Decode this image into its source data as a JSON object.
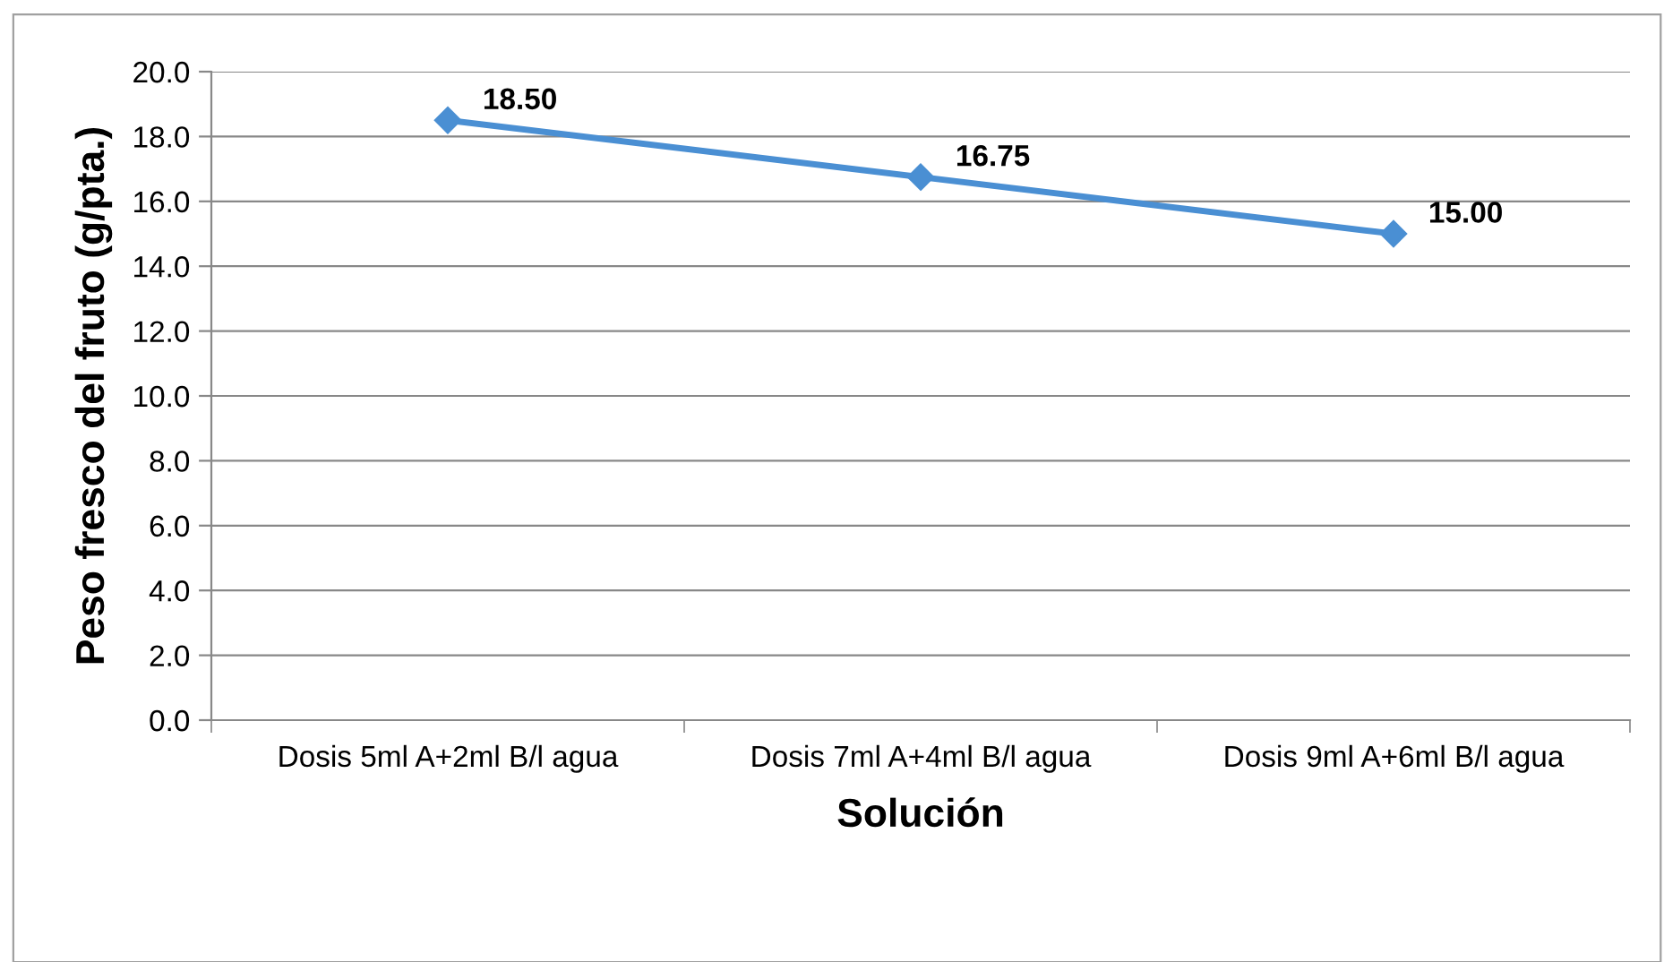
{
  "chart_data": {
    "type": "line",
    "xlabel": "Solución",
    "ylabel": "Peso fresco del fruto (g/pta.)",
    "categories": [
      "Dosis 5ml A+2ml B/l agua",
      "Dosis 7ml A+4ml B/l agua",
      "Dosis 9ml A+6ml B/l agua"
    ],
    "series": [
      {
        "color": "#4a8fd3",
        "values": [
          18.5,
          16.75,
          15.0
        ],
        "value_labels": [
          "18.50",
          "16.75",
          "15.00"
        ]
      }
    ],
    "ylim": [
      0,
      20
    ],
    "yticks": [
      {
        "value": 0,
        "label": "0.0"
      },
      {
        "value": 2,
        "label": "2.0"
      },
      {
        "value": 4,
        "label": "4.0"
      },
      {
        "value": 6,
        "label": "6.0"
      },
      {
        "value": 8,
        "label": "8.0"
      },
      {
        "value": 10,
        "label": "10.0"
      },
      {
        "value": 12,
        "label": "12.0"
      },
      {
        "value": 14,
        "label": "14.0"
      },
      {
        "value": 16,
        "label": "16.0"
      },
      {
        "value": 18,
        "label": "18.0"
      },
      {
        "value": 20,
        "label": "20.0"
      }
    ],
    "grid": "y",
    "marker": "diamond",
    "line_style": "solid",
    "legend": false
  }
}
